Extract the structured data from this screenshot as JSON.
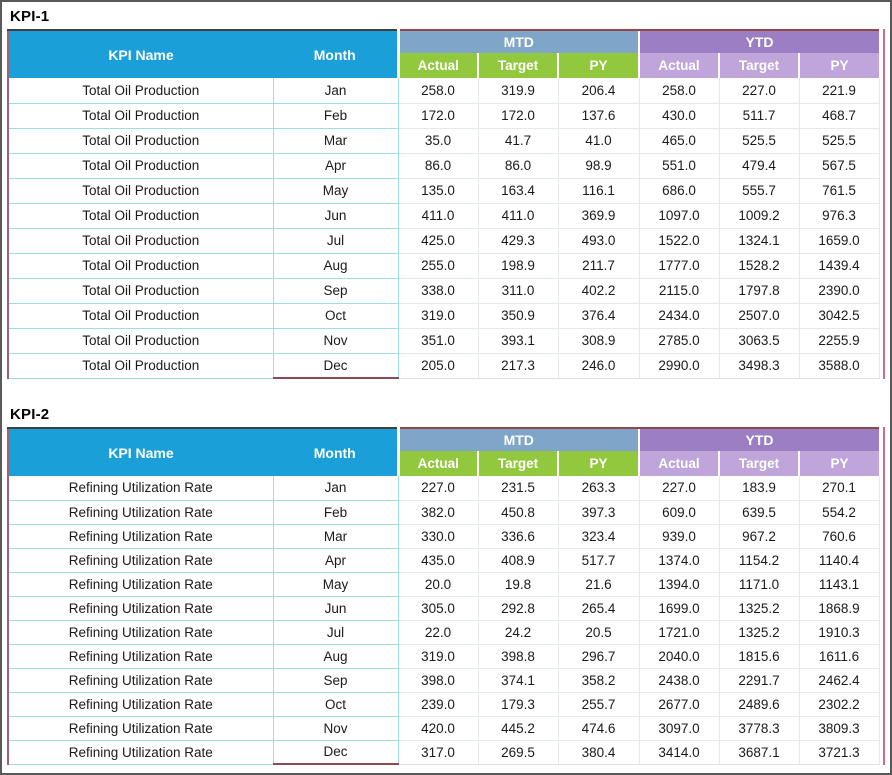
{
  "window": {
    "background": "#ffffff",
    "border_color": "#595959"
  },
  "colors": {
    "header_cyan": "#1b9fd9",
    "mtd_band_blue": "#7fa5c9",
    "mtd_sub_green": "#92c83e",
    "ytd_band_purple": "#9c7ec5",
    "ytd_sub_light_purple": "#bfa5da",
    "table_left_border_maroon": "#9c6272",
    "table_right_border_pink": "#d4679b",
    "grid_line_cyan": "#9edde8",
    "grid_line_light": "#e4eae6",
    "header_text": "#ffffff",
    "body_text": "#1a1a1a"
  },
  "tables": [
    {
      "title": "KPI-1",
      "kpi_name": "Total Oil Production",
      "headers": {
        "kpi_name": "KPI Name",
        "month": "Month",
        "mtd": "MTD",
        "ytd": "YTD",
        "sub": [
          "Actual",
          "Target",
          "PY"
        ]
      },
      "rows": [
        [
          "Jan",
          "258.0",
          "319.9",
          "206.4",
          "258.0",
          "227.0",
          "221.9"
        ],
        [
          "Feb",
          "172.0",
          "172.0",
          "137.6",
          "430.0",
          "511.7",
          "468.7"
        ],
        [
          "Mar",
          "35.0",
          "41.7",
          "41.0",
          "465.0",
          "525.5",
          "525.5"
        ],
        [
          "Apr",
          "86.0",
          "86.0",
          "98.9",
          "551.0",
          "479.4",
          "567.5"
        ],
        [
          "May",
          "135.0",
          "163.4",
          "116.1",
          "686.0",
          "555.7",
          "761.5"
        ],
        [
          "Jun",
          "411.0",
          "411.0",
          "369.9",
          "1097.0",
          "1009.2",
          "976.3"
        ],
        [
          "Jul",
          "425.0",
          "429.3",
          "493.0",
          "1522.0",
          "1324.1",
          "1659.0"
        ],
        [
          "Aug",
          "255.0",
          "198.9",
          "211.7",
          "1777.0",
          "1528.2",
          "1439.4"
        ],
        [
          "Sep",
          "338.0",
          "311.0",
          "402.2",
          "2115.0",
          "1797.8",
          "2390.0"
        ],
        [
          "Oct",
          "319.0",
          "350.9",
          "376.4",
          "2434.0",
          "2507.0",
          "3042.5"
        ],
        [
          "Nov",
          "351.0",
          "393.1",
          "308.9",
          "2785.0",
          "3063.5",
          "2255.9"
        ],
        [
          "Dec",
          "205.0",
          "217.3",
          "246.0",
          "2990.0",
          "3498.3",
          "3588.0"
        ]
      ]
    },
    {
      "title": "KPI-2",
      "kpi_name": "Refining Utilization Rate",
      "headers": {
        "kpi_name": "KPI Name",
        "month": "Month",
        "mtd": "MTD",
        "ytd": "YTD",
        "sub": [
          "Actual",
          "Target",
          "PY"
        ]
      },
      "rows": [
        [
          "Jan",
          "227.0",
          "231.5",
          "263.3",
          "227.0",
          "183.9",
          "270.1"
        ],
        [
          "Feb",
          "382.0",
          "450.8",
          "397.3",
          "609.0",
          "639.5",
          "554.2"
        ],
        [
          "Mar",
          "330.0",
          "336.6",
          "323.4",
          "939.0",
          "967.2",
          "760.6"
        ],
        [
          "Apr",
          "435.0",
          "408.9",
          "517.7",
          "1374.0",
          "1154.2",
          "1140.4"
        ],
        [
          "May",
          "20.0",
          "19.8",
          "21.6",
          "1394.0",
          "1171.0",
          "1143.1"
        ],
        [
          "Jun",
          "305.0",
          "292.8",
          "265.4",
          "1699.0",
          "1325.2",
          "1868.9"
        ],
        [
          "Jul",
          "22.0",
          "24.2",
          "20.5",
          "1721.0",
          "1325.2",
          "1910.3"
        ],
        [
          "Aug",
          "319.0",
          "398.8",
          "296.7",
          "2040.0",
          "1815.6",
          "1611.6"
        ],
        [
          "Sep",
          "398.0",
          "374.1",
          "358.2",
          "2438.0",
          "2291.7",
          "2462.4"
        ],
        [
          "Oct",
          "239.0",
          "179.3",
          "255.7",
          "2677.0",
          "2489.6",
          "2302.2"
        ],
        [
          "Nov",
          "420.0",
          "445.2",
          "474.6",
          "3097.0",
          "3778.3",
          "3809.3"
        ],
        [
          "Dec",
          "317.0",
          "269.5",
          "380.4",
          "3414.0",
          "3687.1",
          "3721.3"
        ]
      ]
    }
  ]
}
